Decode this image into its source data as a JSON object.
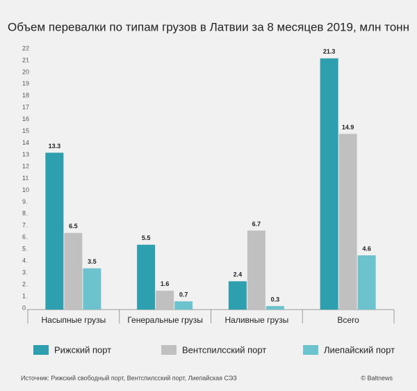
{
  "chart_data": {
    "type": "bar",
    "title": "Объем перевалки по типам грузов в Латвии за 8 месяцев 2019, млн тонн",
    "categories": [
      "Насыпные грузы",
      "Генеральные грузы",
      "Наливные грузы",
      "Всего"
    ],
    "series": [
      {
        "name": "Рижский порт",
        "color": "#2e9fae",
        "values": [
          13.3,
          5.5,
          2.4,
          21.3
        ]
      },
      {
        "name": "Вентспилсский порт",
        "color": "#c0c0c0",
        "values": [
          6.5,
          1.6,
          6.7,
          14.9
        ]
      },
      {
        "name": "Лиепайский порт",
        "color": "#6cc3cd",
        "values": [
          3.5,
          0.7,
          0.3,
          4.6
        ]
      }
    ],
    "ylim": [
      0,
      22
    ],
    "yticks": [
      0,
      1,
      2,
      3,
      4,
      5,
      6,
      7,
      8,
      9,
      10,
      11,
      12,
      13,
      14,
      15,
      16,
      17,
      18,
      19,
      20,
      21,
      22
    ],
    "grid": false,
    "legend": "bottom",
    "source": "Источник: Рижский свободный порт, Вентспилсский порт, Лиепайская СЭЗ",
    "credit": "© Baltnews"
  }
}
